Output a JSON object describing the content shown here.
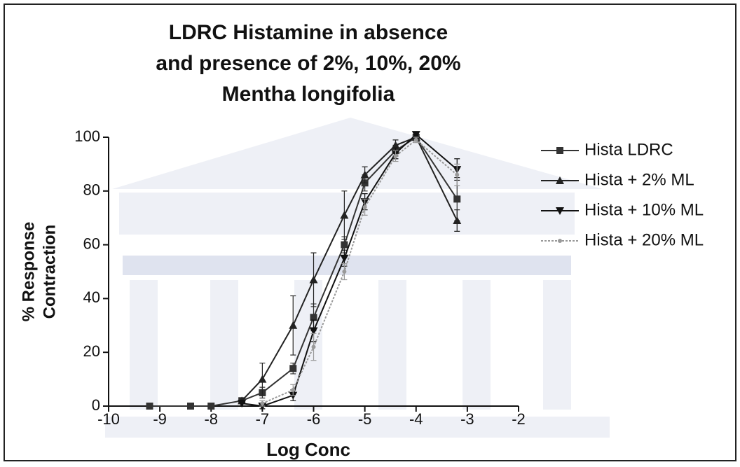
{
  "chart_data": {
    "type": "line",
    "title": [
      "LDRC Histamine in absence",
      "and presence of 2%, 10%, 20%",
      "Mentha longifolia"
    ],
    "xlabel": "Log Conc",
    "ylabel": [
      "% Response",
      "Contraction"
    ],
    "x": [
      -9.2,
      -8.4,
      -8,
      -7.4,
      -7,
      -6.4,
      -6,
      -5.4,
      -5,
      -4.4,
      -4,
      -3.2
    ],
    "series": [
      {
        "name": "Hista LDRC",
        "color": "#333333",
        "marker": "square",
        "values": [
          0,
          0,
          0,
          2,
          5,
          14,
          33,
          60,
          83,
          95,
          100,
          77
        ],
        "errors": [
          0,
          0,
          0,
          1,
          2,
          2,
          5,
          3,
          3,
          2,
          1,
          8
        ]
      },
      {
        "name": "Hista + 2% ML",
        "color": "#222222",
        "marker": "triangle-up",
        "values": [
          null,
          null,
          null,
          2,
          10,
          30,
          47,
          71,
          86,
          97,
          100,
          69
        ],
        "errors": [
          null,
          null,
          null,
          1,
          6,
          11,
          10,
          9,
          3,
          2,
          1,
          4
        ]
      },
      {
        "name": "Hista + 10% ML",
        "color": "#111111",
        "marker": "triangle-down",
        "values": [
          null,
          null,
          null,
          1,
          0,
          4,
          28,
          55,
          76,
          94,
          101,
          88
        ],
        "errors": [
          null,
          null,
          null,
          1,
          1,
          2,
          4,
          3,
          3,
          2,
          1,
          4
        ]
      },
      {
        "name": "Hista + 20% ML",
        "color": "#999999",
        "marker": "circle",
        "values": [
          null,
          null,
          null,
          null,
          1,
          6,
          22,
          50,
          74,
          93,
          99,
          86
        ],
        "errors": [
          null,
          null,
          null,
          null,
          1,
          2,
          5,
          3,
          3,
          2,
          1,
          4
        ]
      }
    ],
    "xlim": [
      -10,
      -2
    ],
    "xticks": [
      -10,
      -9,
      -8,
      -7,
      -6,
      -5,
      -4,
      -3,
      -2
    ],
    "ylim": [
      0,
      100
    ],
    "yticks": [
      0,
      20,
      40,
      60,
      80,
      100
    ],
    "legend": "right"
  }
}
